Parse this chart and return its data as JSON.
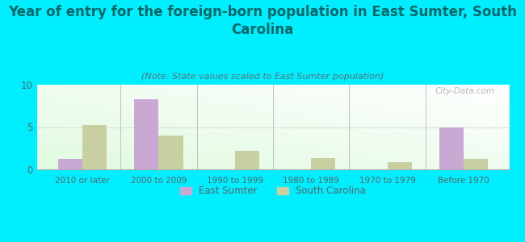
{
  "title": "Year of entry for the foreign-born population in East Sumter, South\nCarolina",
  "subtitle": "(Note: State values scaled to East Sumter population)",
  "categories": [
    "2010 or later",
    "2000 to 2009",
    "1990 to 1999",
    "1980 to 1989",
    "1970 to 1979",
    "Before 1970"
  ],
  "east_sumter": [
    1.2,
    8.3,
    0,
    0,
    0,
    5.0
  ],
  "south_carolina": [
    5.2,
    4.0,
    2.2,
    1.3,
    0.9,
    1.2
  ],
  "bar_color_es": "#c9a8d4",
  "bar_color_sc": "#c8cfa0",
  "background_color": "#00eeff",
  "ylim": [
    0,
    10
  ],
  "yticks": [
    0,
    5,
    10
  ],
  "watermark": "City-Data.com",
  "legend_es": "East Sumter",
  "legend_sc": "South Carolina",
  "title_fontsize": 12,
  "subtitle_fontsize": 8,
  "title_color": "#006666",
  "subtitle_color": "#557777",
  "tick_color": "#556666",
  "grid_color": "#dddddd"
}
